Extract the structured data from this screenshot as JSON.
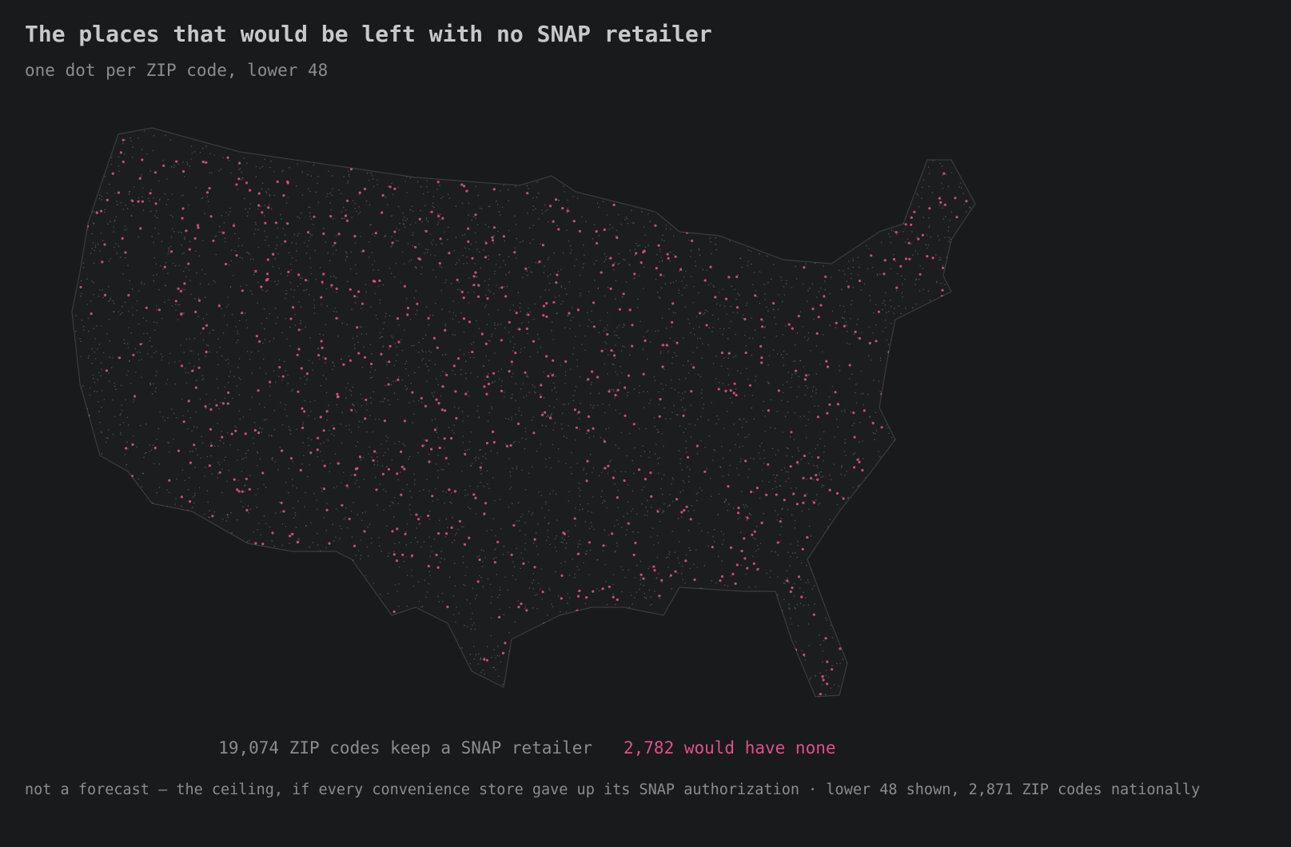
{
  "header": {
    "title": "The places that would be left with no SNAP retailer",
    "subtitle": "one dot per ZIP code, lower 48"
  },
  "legend": [
    {
      "label": "19,074 ZIP codes keep a SNAP retailer",
      "color": "#8a8c8e"
    },
    {
      "label": "2,782 would have none",
      "color": "#e0508a"
    }
  ],
  "footnote": "not a forecast — the ceiling, if every convenience store gave up its SNAP authorization · lower 48 shown, 2,871 ZIP codes nationally"
}
